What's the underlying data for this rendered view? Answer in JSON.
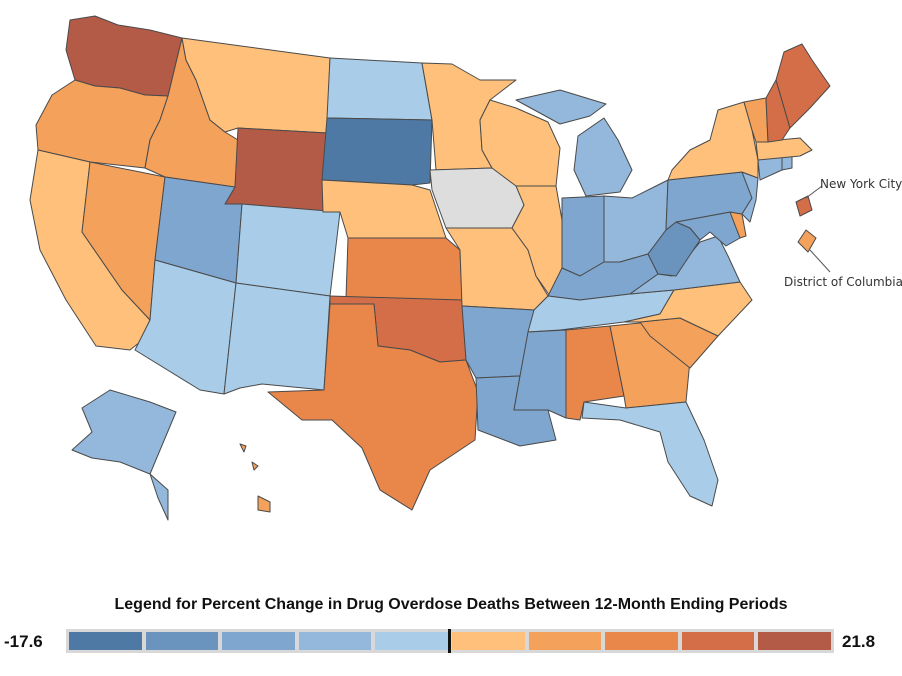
{
  "map": {
    "title": "Legend for Percent Change in Drug Overdose Deaths Between 12-Month Ending Periods",
    "annotations": {
      "nyc": "New York City",
      "dc": "District of Columbia"
    },
    "colors": {
      "bin_0": "#4e79a4",
      "bin_1": "#6a93bd",
      "bin_2": "#7fa6cf",
      "bin_3": "#93b8dc",
      "bin_4": "#a9cde8",
      "bin_5": "#fec07a",
      "bin_6": "#f4a15c",
      "bin_7": "#e9864a",
      "bin_8": "#d46e48",
      "bin_9": "#b45b48",
      "no_data": "#dddddd"
    },
    "states": [
      {
        "name": "Washington",
        "bin": 9
      },
      {
        "name": "Oregon",
        "bin": 6
      },
      {
        "name": "California",
        "bin": 5
      },
      {
        "name": "Nevada",
        "bin": 6
      },
      {
        "name": "Idaho",
        "bin": 6
      },
      {
        "name": "Montana",
        "bin": 5
      },
      {
        "name": "Wyoming",
        "bin": 9
      },
      {
        "name": "Utah",
        "bin": 2
      },
      {
        "name": "Colorado",
        "bin": 4
      },
      {
        "name": "Arizona",
        "bin": 4
      },
      {
        "name": "New Mexico",
        "bin": 4
      },
      {
        "name": "North Dakota",
        "bin": 4
      },
      {
        "name": "South Dakota",
        "bin": 0
      },
      {
        "name": "Nebraska",
        "bin": 5
      },
      {
        "name": "Kansas",
        "bin": 7
      },
      {
        "name": "Oklahoma",
        "bin": 8
      },
      {
        "name": "Texas",
        "bin": 7
      },
      {
        "name": "Minnesota",
        "bin": 5
      },
      {
        "name": "Iowa",
        "bin": "no_data"
      },
      {
        "name": "Missouri",
        "bin": 5
      },
      {
        "name": "Arkansas",
        "bin": 2
      },
      {
        "name": "Louisiana",
        "bin": 2
      },
      {
        "name": "Wisconsin",
        "bin": 5
      },
      {
        "name": "Illinois",
        "bin": 5
      },
      {
        "name": "Michigan",
        "bin": 3
      },
      {
        "name": "Indiana",
        "bin": 2
      },
      {
        "name": "Ohio",
        "bin": 3
      },
      {
        "name": "Kentucky",
        "bin": 2
      },
      {
        "name": "Tennessee",
        "bin": 4
      },
      {
        "name": "Mississippi",
        "bin": 2
      },
      {
        "name": "Alabama",
        "bin": 7
      },
      {
        "name": "Georgia",
        "bin": 6
      },
      {
        "name": "Florida",
        "bin": 4
      },
      {
        "name": "South Carolina",
        "bin": 6
      },
      {
        "name": "North Carolina",
        "bin": 5
      },
      {
        "name": "Virginia",
        "bin": 3
      },
      {
        "name": "West Virginia",
        "bin": 1
      },
      {
        "name": "Maryland",
        "bin": 2
      },
      {
        "name": "Delaware",
        "bin": 6
      },
      {
        "name": "Pennsylvania",
        "bin": 2
      },
      {
        "name": "New Jersey",
        "bin": 3
      },
      {
        "name": "New York",
        "bin": 5
      },
      {
        "name": "Connecticut",
        "bin": 3
      },
      {
        "name": "Rhode Island",
        "bin": 3
      },
      {
        "name": "Massachusetts",
        "bin": 5
      },
      {
        "name": "Vermont",
        "bin": 6
      },
      {
        "name": "New Hampshire",
        "bin": 8
      },
      {
        "name": "Maine",
        "bin": 8
      },
      {
        "name": "Alaska",
        "bin": 3
      },
      {
        "name": "Hawaii",
        "bin": 6
      },
      {
        "name": "New York City",
        "bin": 8
      },
      {
        "name": "District of Columbia",
        "bin": 6
      }
    ]
  },
  "legend": {
    "min_label": "-17.6",
    "max_label": "21.8",
    "min_value": -17.6,
    "max_value": 21.8,
    "swatches": [
      "#4e79a4",
      "#6a93bd",
      "#7fa6cf",
      "#93b8dc",
      "#a9cde8",
      "#fec07a",
      "#f4a15c",
      "#e9864a",
      "#d46e48",
      "#b45b48"
    ],
    "frame_color": "#d8d8d8",
    "zero_marker_color": "#111111"
  }
}
